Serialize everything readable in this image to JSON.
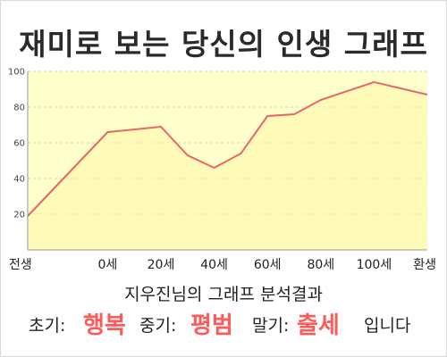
{
  "title": "재미로 보는 당신의 인생 그래프",
  "colors": {
    "plot_fill": "#ffffcc",
    "line": "#e8666a",
    "grid": "#cfcfcf",
    "highlight": "#ff5a5a"
  },
  "chart_data": {
    "type": "area",
    "title": "재미로 보는 당신의 인생 그래프",
    "xlabel": "",
    "ylabel": "",
    "x_tick_labels": [
      "전생",
      "0세",
      "20세",
      "40세",
      "60세",
      "80세",
      "100세",
      "환생"
    ],
    "x_tick_values": [
      -30,
      0,
      20,
      40,
      60,
      80,
      100,
      120
    ],
    "y_ticks": [
      20,
      40,
      60,
      80,
      100
    ],
    "ylim": [
      0,
      100
    ],
    "xlim": [
      -30,
      120
    ],
    "grid": "horizontal dashed",
    "points": [
      {
        "x": -30,
        "y": 19
      },
      {
        "x": 0,
        "y": 66
      },
      {
        "x": 20,
        "y": 69
      },
      {
        "x": 30,
        "y": 53
      },
      {
        "x": 40,
        "y": 46
      },
      {
        "x": 50,
        "y": 54
      },
      {
        "x": 60,
        "y": 75
      },
      {
        "x": 70,
        "y": 76
      },
      {
        "x": 80,
        "y": 84
      },
      {
        "x": 100,
        "y": 94
      },
      {
        "x": 120,
        "y": 87
      }
    ]
  },
  "result": {
    "title": "지우진님의 그래프 분석결과",
    "early_label": "초기:",
    "early_value": "행복",
    "middle_label": "중기:",
    "middle_value": "평범",
    "late_label": "말기:",
    "late_value": "출세",
    "suffix": "입니다"
  }
}
